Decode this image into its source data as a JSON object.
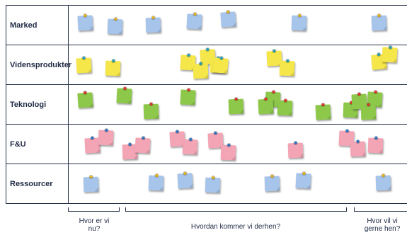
{
  "rows": [
    {
      "label": "Marked",
      "color": "#a7c4ea",
      "pin": "#e3b31c"
    },
    {
      "label": "Vidensprodukter",
      "color": "#f5e64a",
      "pin": "#28a0b4"
    },
    {
      "label": "Teknologi",
      "color": "#8dc84b",
      "pin": "#e0352b"
    },
    {
      "label": "F&U",
      "color": "#f3a5b6",
      "pin": "#2f74c0"
    },
    {
      "label": "Ressourcer",
      "color": "#a7c4ea",
      "pin": "#e3b31c"
    }
  ],
  "phases": [
    {
      "label": "Hvor er vi nu?"
    },
    {
      "label": "Hvordan kommer vi derhen?"
    },
    {
      "label": "Hvor vil vi gerne hen?"
    }
  ]
}
